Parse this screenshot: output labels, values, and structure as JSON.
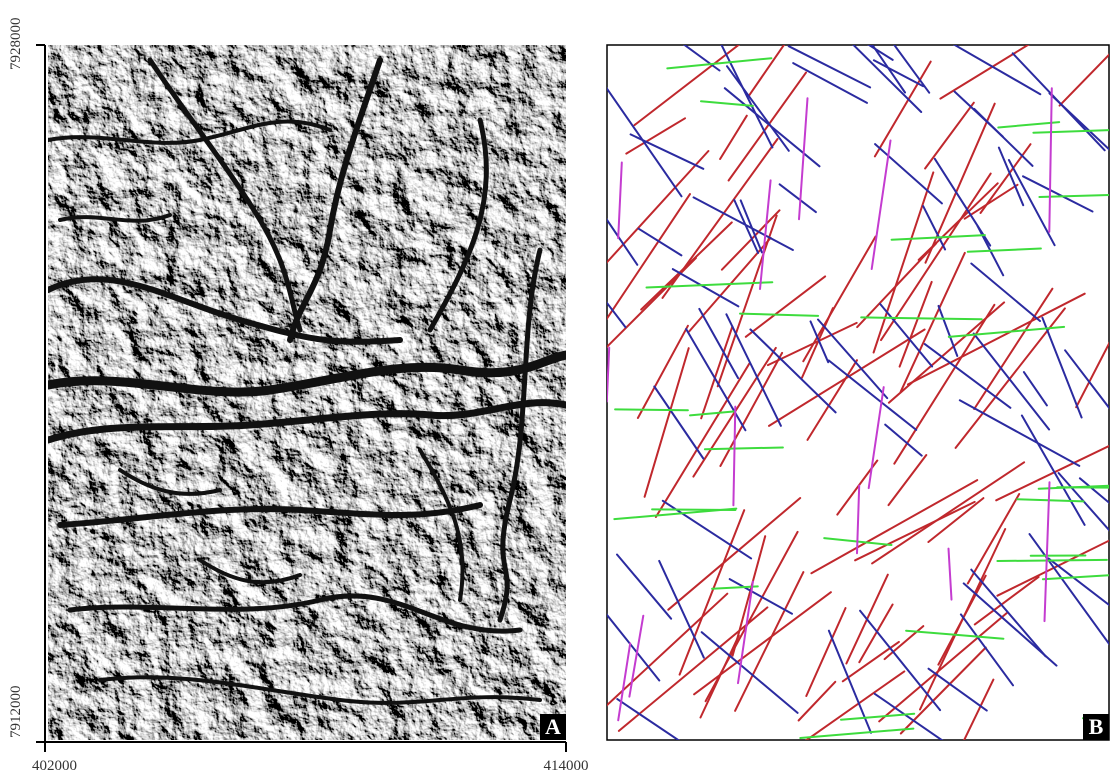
{
  "panel_a": {
    "label": "A",
    "y_axis": {
      "top": 7928000,
      "bottom": 7912000
    },
    "x_axis": {
      "left": 402000,
      "right": 414000
    }
  },
  "panel_b": {
    "label": "B"
  }
}
